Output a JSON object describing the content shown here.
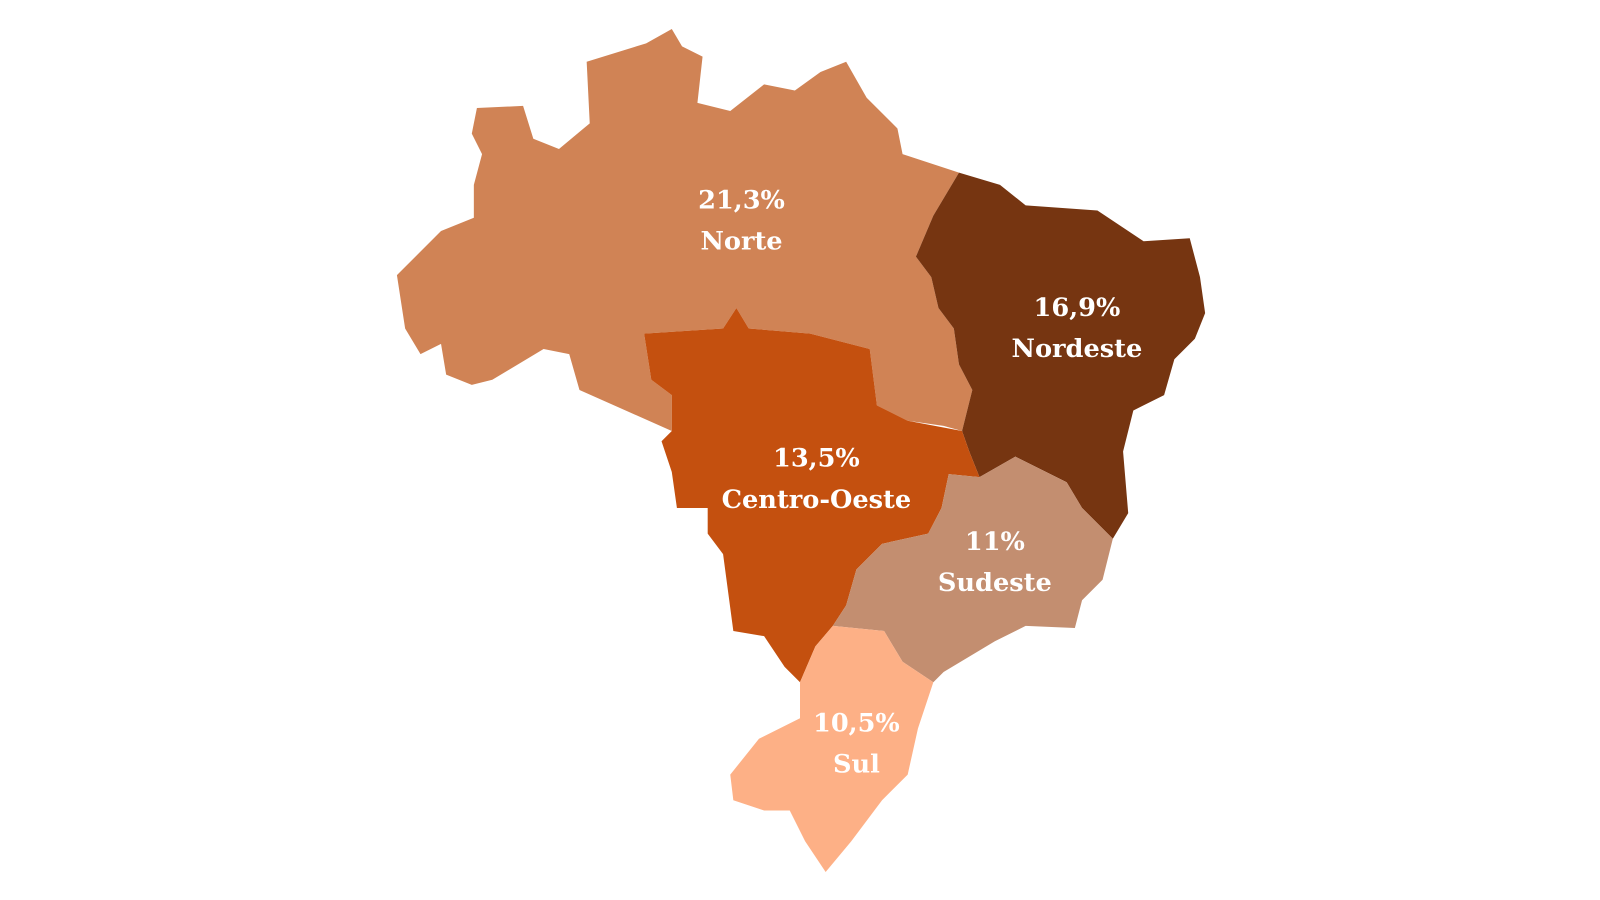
{
  "regions": [
    {
      "name": "Norte",
      "label": "21,3%",
      "color": "#d08355"
    },
    {
      "name": "Nordeste",
      "label": "16,9%",
      "color": "#763511"
    },
    {
      "name": "Centro-Oeste",
      "label": "13,5%",
      "color": "#c4500f"
    },
    {
      "name": "Sudeste",
      "label": "11%",
      "color": "#c38e70"
    },
    {
      "name": "Sul",
      "label": "10,5%",
      "color": "#fdb086"
    }
  ]
}
